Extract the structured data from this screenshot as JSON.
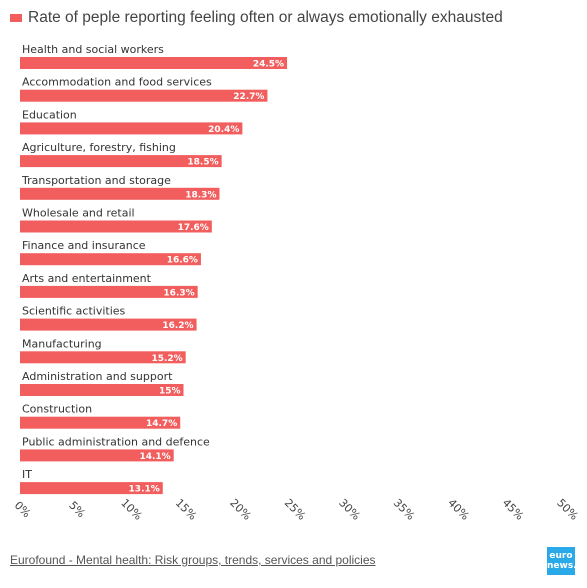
{
  "chart_data": {
    "type": "bar",
    "orientation": "horizontal",
    "legend": "Rate of peple reporting feeling often or always emotionally exhausted",
    "categories": [
      "Health and social workers",
      "Accommodation and food services",
      "Education",
      "Agriculture, forestry, fishing",
      "Transportation and storage",
      "Wholesale and retail",
      "Finance and insurance",
      "Arts and entertainment",
      "Scientific activities",
      "Manufacturing",
      "Administration and support",
      "Construction",
      "Public administration and defence",
      "IT"
    ],
    "values": [
      24.5,
      22.7,
      20.4,
      18.5,
      18.3,
      17.6,
      16.6,
      16.3,
      16.2,
      15.2,
      15,
      14.7,
      14.1,
      13.1
    ],
    "value_labels": [
      "24.5%",
      "22.7%",
      "20.4%",
      "18.5%",
      "18.3%",
      "17.6%",
      "16.6%",
      "16.3%",
      "16.2%",
      "15.2%",
      "15%",
      "14.7%",
      "14.1%",
      "13.1%"
    ],
    "x_ticks": [
      "0%",
      "5%",
      "10%",
      "15%",
      "20%",
      "25%",
      "30%",
      "35%",
      "40%",
      "45%",
      "50%"
    ],
    "xlim": [
      0,
      50
    ],
    "bar_color": "#f25e5e",
    "grid": false,
    "legend_position": "top-left"
  },
  "footer": {
    "source": "Eurofound - Mental health: Risk groups, trends, services and policies",
    "logo_line1": "euro",
    "logo_line2": "news."
  }
}
